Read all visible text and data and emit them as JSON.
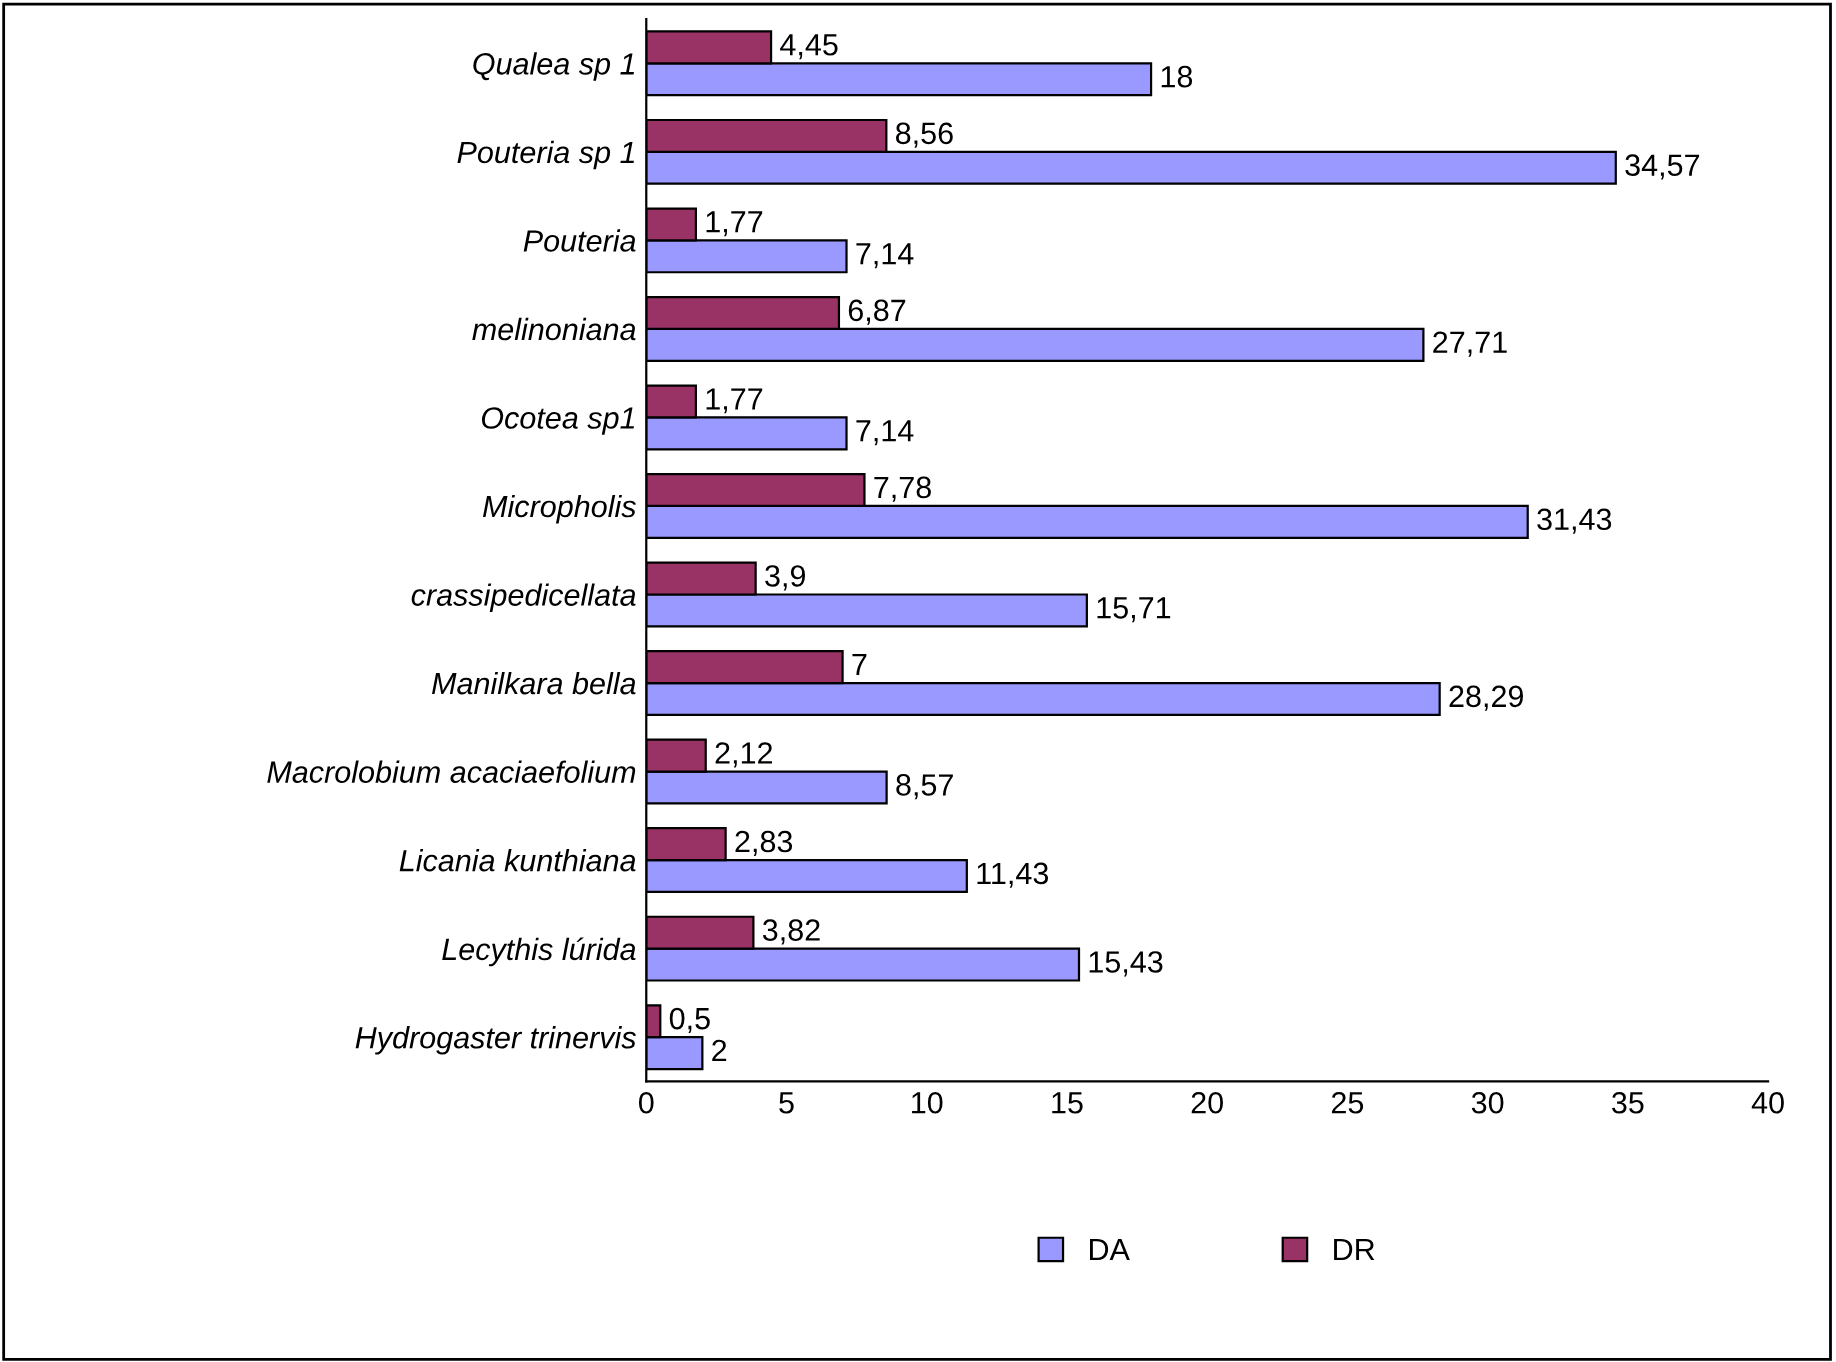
{
  "chart_data": {
    "type": "bar",
    "orientation": "horizontal",
    "categories": [
      "Qualea sp 1",
      "Pouteria sp 1",
      "Pouteria",
      "melinoniana",
      "Ocotea sp1",
      "Micropholis",
      "crassipedicellata",
      "Manilkara bella",
      "Macrolobium acaciaefolium",
      "Licania kunthiana",
      "Lecythis lúrida",
      "Hydrogaster trinervis"
    ],
    "series": [
      {
        "name": "DA",
        "color": "#9999ff",
        "values": [
          18,
          34.57,
          7.14,
          27.71,
          7.14,
          31.43,
          15.71,
          28.29,
          8.57,
          11.43,
          15.43,
          2
        ],
        "value_labels": [
          "18",
          "34,57",
          "7,14",
          "27,71",
          "7,14",
          "31,43",
          "15,71",
          "28,29",
          "8,57",
          "11,43",
          "15,43",
          "2"
        ]
      },
      {
        "name": "DR",
        "color": "#993366",
        "values": [
          4.45,
          8.56,
          1.77,
          6.87,
          1.77,
          7.78,
          3.9,
          7,
          2.12,
          2.83,
          3.82,
          0.5
        ],
        "value_labels": [
          "4,45",
          "8,56",
          "1,77",
          "6,87",
          "1,77",
          "7,78",
          "3,9",
          "7",
          "2,12",
          "2,83",
          "3,82",
          "0,5"
        ]
      }
    ],
    "xlim": [
      0,
      40
    ],
    "xticks": [
      0,
      5,
      10,
      15,
      20,
      25,
      30,
      35,
      40
    ],
    "grid": false,
    "legend": "bottom"
  }
}
